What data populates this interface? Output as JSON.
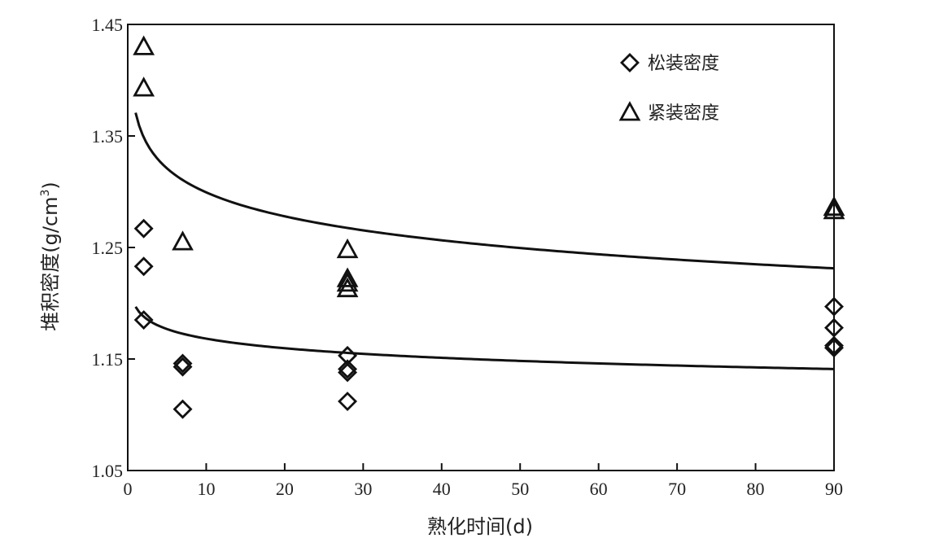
{
  "chart_data": {
    "type": "scatter",
    "title": "",
    "xlabel": "熟化时间(d)",
    "ylabel": "堆积密度(g/cm",
    "ylabel_sup": "3",
    "ylabel_close": ")",
    "xlim": [
      0,
      90
    ],
    "ylim": [
      1.05,
      1.45
    ],
    "x_ticks": [
      0,
      10,
      20,
      30,
      40,
      50,
      60,
      70,
      80,
      90
    ],
    "x_tick_labels": [
      "0",
      "10",
      "20",
      "30",
      "40",
      "50",
      "60",
      "70",
      "80",
      "90"
    ],
    "y_ticks": [
      1.05,
      1.15,
      1.25,
      1.35,
      1.45
    ],
    "y_tick_labels": [
      "1.05",
      "1.15",
      "1.25",
      "1.35",
      "1.45"
    ],
    "grid": false,
    "legend_position": "top-right",
    "series": [
      {
        "name": "松装密度",
        "marker": "diamond",
        "points": [
          [
            1,
            1.267
          ],
          [
            1,
            1.233
          ],
          [
            1,
            1.185
          ],
          [
            7,
            1.146
          ],
          [
            7,
            1.143
          ],
          [
            7,
            1.105
          ],
          [
            28,
            1.153
          ],
          [
            28,
            1.141
          ],
          [
            28,
            1.138
          ],
          [
            28,
            1.112
          ],
          [
            90,
            1.197
          ],
          [
            90,
            1.178
          ],
          [
            90,
            1.162
          ],
          [
            90,
            1.16
          ]
        ]
      },
      {
        "name": "紧装密度",
        "marker": "triangle",
        "points": [
          [
            1,
            1.43
          ],
          [
            1,
            1.393
          ],
          [
            7,
            1.255
          ],
          [
            28,
            1.248
          ],
          [
            28,
            1.222
          ],
          [
            28,
            1.218
          ],
          [
            28,
            1.213
          ],
          [
            90,
            1.286
          ],
          [
            90,
            1.283
          ]
        ]
      }
    ],
    "fit_curves": [
      {
        "series": "紧装密度",
        "a": 1.3708,
        "b": -0.031,
        "x_range": [
          1,
          90
        ]
      },
      {
        "series": "松装密度",
        "a": 1.1968,
        "b": -0.0124,
        "x_range": [
          1,
          90
        ]
      }
    ]
  }
}
